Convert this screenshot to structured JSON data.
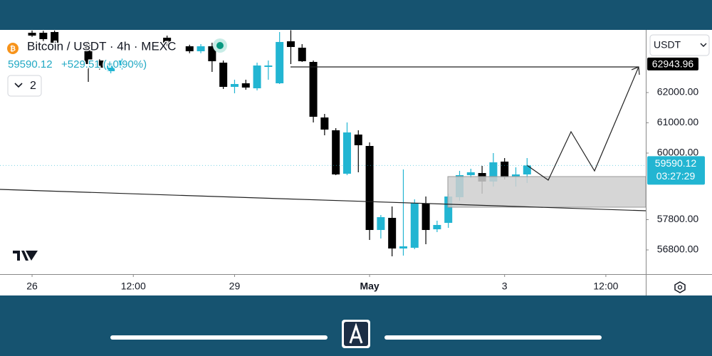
{
  "chart_data": {
    "type": "candlestick",
    "title": "Bitcoin / USDT · 4h · MEXC",
    "last_price": 59590.12,
    "change": "+529.51 (+0.90%)",
    "countdown": "03:27:29",
    "target_price": 62943.96,
    "indicator_count": 2,
    "quote_currency": "USDT",
    "up_color": "#22b5d2",
    "down_color": "#000000",
    "x": [
      0,
      4,
      8,
      20,
      24,
      28,
      32,
      48,
      56,
      60,
      64,
      68,
      72,
      76,
      80,
      84,
      88,
      92,
      96,
      100,
      104,
      108,
      112,
      116,
      120,
      124,
      128,
      132,
      136,
      140,
      144,
      148,
      152,
      156,
      160,
      164,
      168,
      172,
      176
    ],
    "open": [
      63976,
      63976,
      64000,
      63647,
      63059,
      62706,
      62824,
      63812,
      63529,
      63365,
      63529,
      62988,
      62188,
      62306,
      62141,
      62847,
      62306,
      63694,
      63482,
      63012,
      61176,
      60753,
      59318,
      60612,
      60235,
      57459,
      57859,
      56847,
      56871,
      58329,
      57482,
      57694,
      58541,
      59271,
      59341,
      59059,
      59718,
      59224,
      59294
    ],
    "high": [
      64050,
      64040,
      64050,
      63700,
      63100,
      63030,
      63120,
      63882,
      63580,
      63600,
      63647,
      63059,
      62424,
      62424,
      62988,
      63059,
      64000,
      64060,
      63600,
      63059,
      61294,
      60824,
      61012,
      60753,
      60353,
      57953,
      58235,
      59459,
      58471,
      58565,
      57765,
      58659,
      59412,
      59482,
      59576,
      60000,
      59835,
      59529,
      59835
    ],
    "low": [
      63840,
      63700,
      63600,
      62353,
      62760,
      62635,
      62760,
      63529,
      63300,
      63300,
      62682,
      62118,
      61976,
      62094,
      62071,
      62424,
      62282,
      62941,
      63012,
      61012,
      60588,
      59271,
      59271,
      59365,
      57129,
      57176,
      56588,
      56612,
      56824,
      56988,
      57388,
      57529,
      58424,
      59176,
      58659,
      58894,
      59129,
      58894,
      59012
    ],
    "close": [
      63882,
      63765,
      63647,
      62941,
      62824,
      62988,
      63059,
      63647,
      63365,
      63529,
      63035,
      62188,
      62282,
      62165,
      62894,
      62894,
      63671,
      63506,
      63035,
      61200,
      60776,
      59294,
      60682,
      60259,
      57459,
      57882,
      56847,
      56918,
      58353,
      57459,
      57624,
      58565,
      59271,
      59365,
      59059,
      59694,
      59200,
      59294,
      59590.12
    ],
    "xlim": [
      -11.4,
      218.2
    ],
    "xticks": [
      {
        "value": 0,
        "label": "26"
      },
      {
        "value": 36,
        "label": "12:00"
      },
      {
        "value": 72,
        "label": "29"
      },
      {
        "value": 120,
        "label": "May"
      },
      {
        "value": 168,
        "label": "3"
      },
      {
        "value": 204,
        "label": "12:00"
      }
    ],
    "ylim": [
      56000,
      64070
    ],
    "yticks": [
      {
        "value": 62000,
        "label": "62000.00"
      },
      {
        "value": 61000,
        "label": "61000.00"
      },
      {
        "value": 60000,
        "label": "60000.00"
      },
      {
        "value": 57800,
        "label": "57800.00"
      },
      {
        "value": 56800,
        "label": "56800.00"
      }
    ]
  }
}
